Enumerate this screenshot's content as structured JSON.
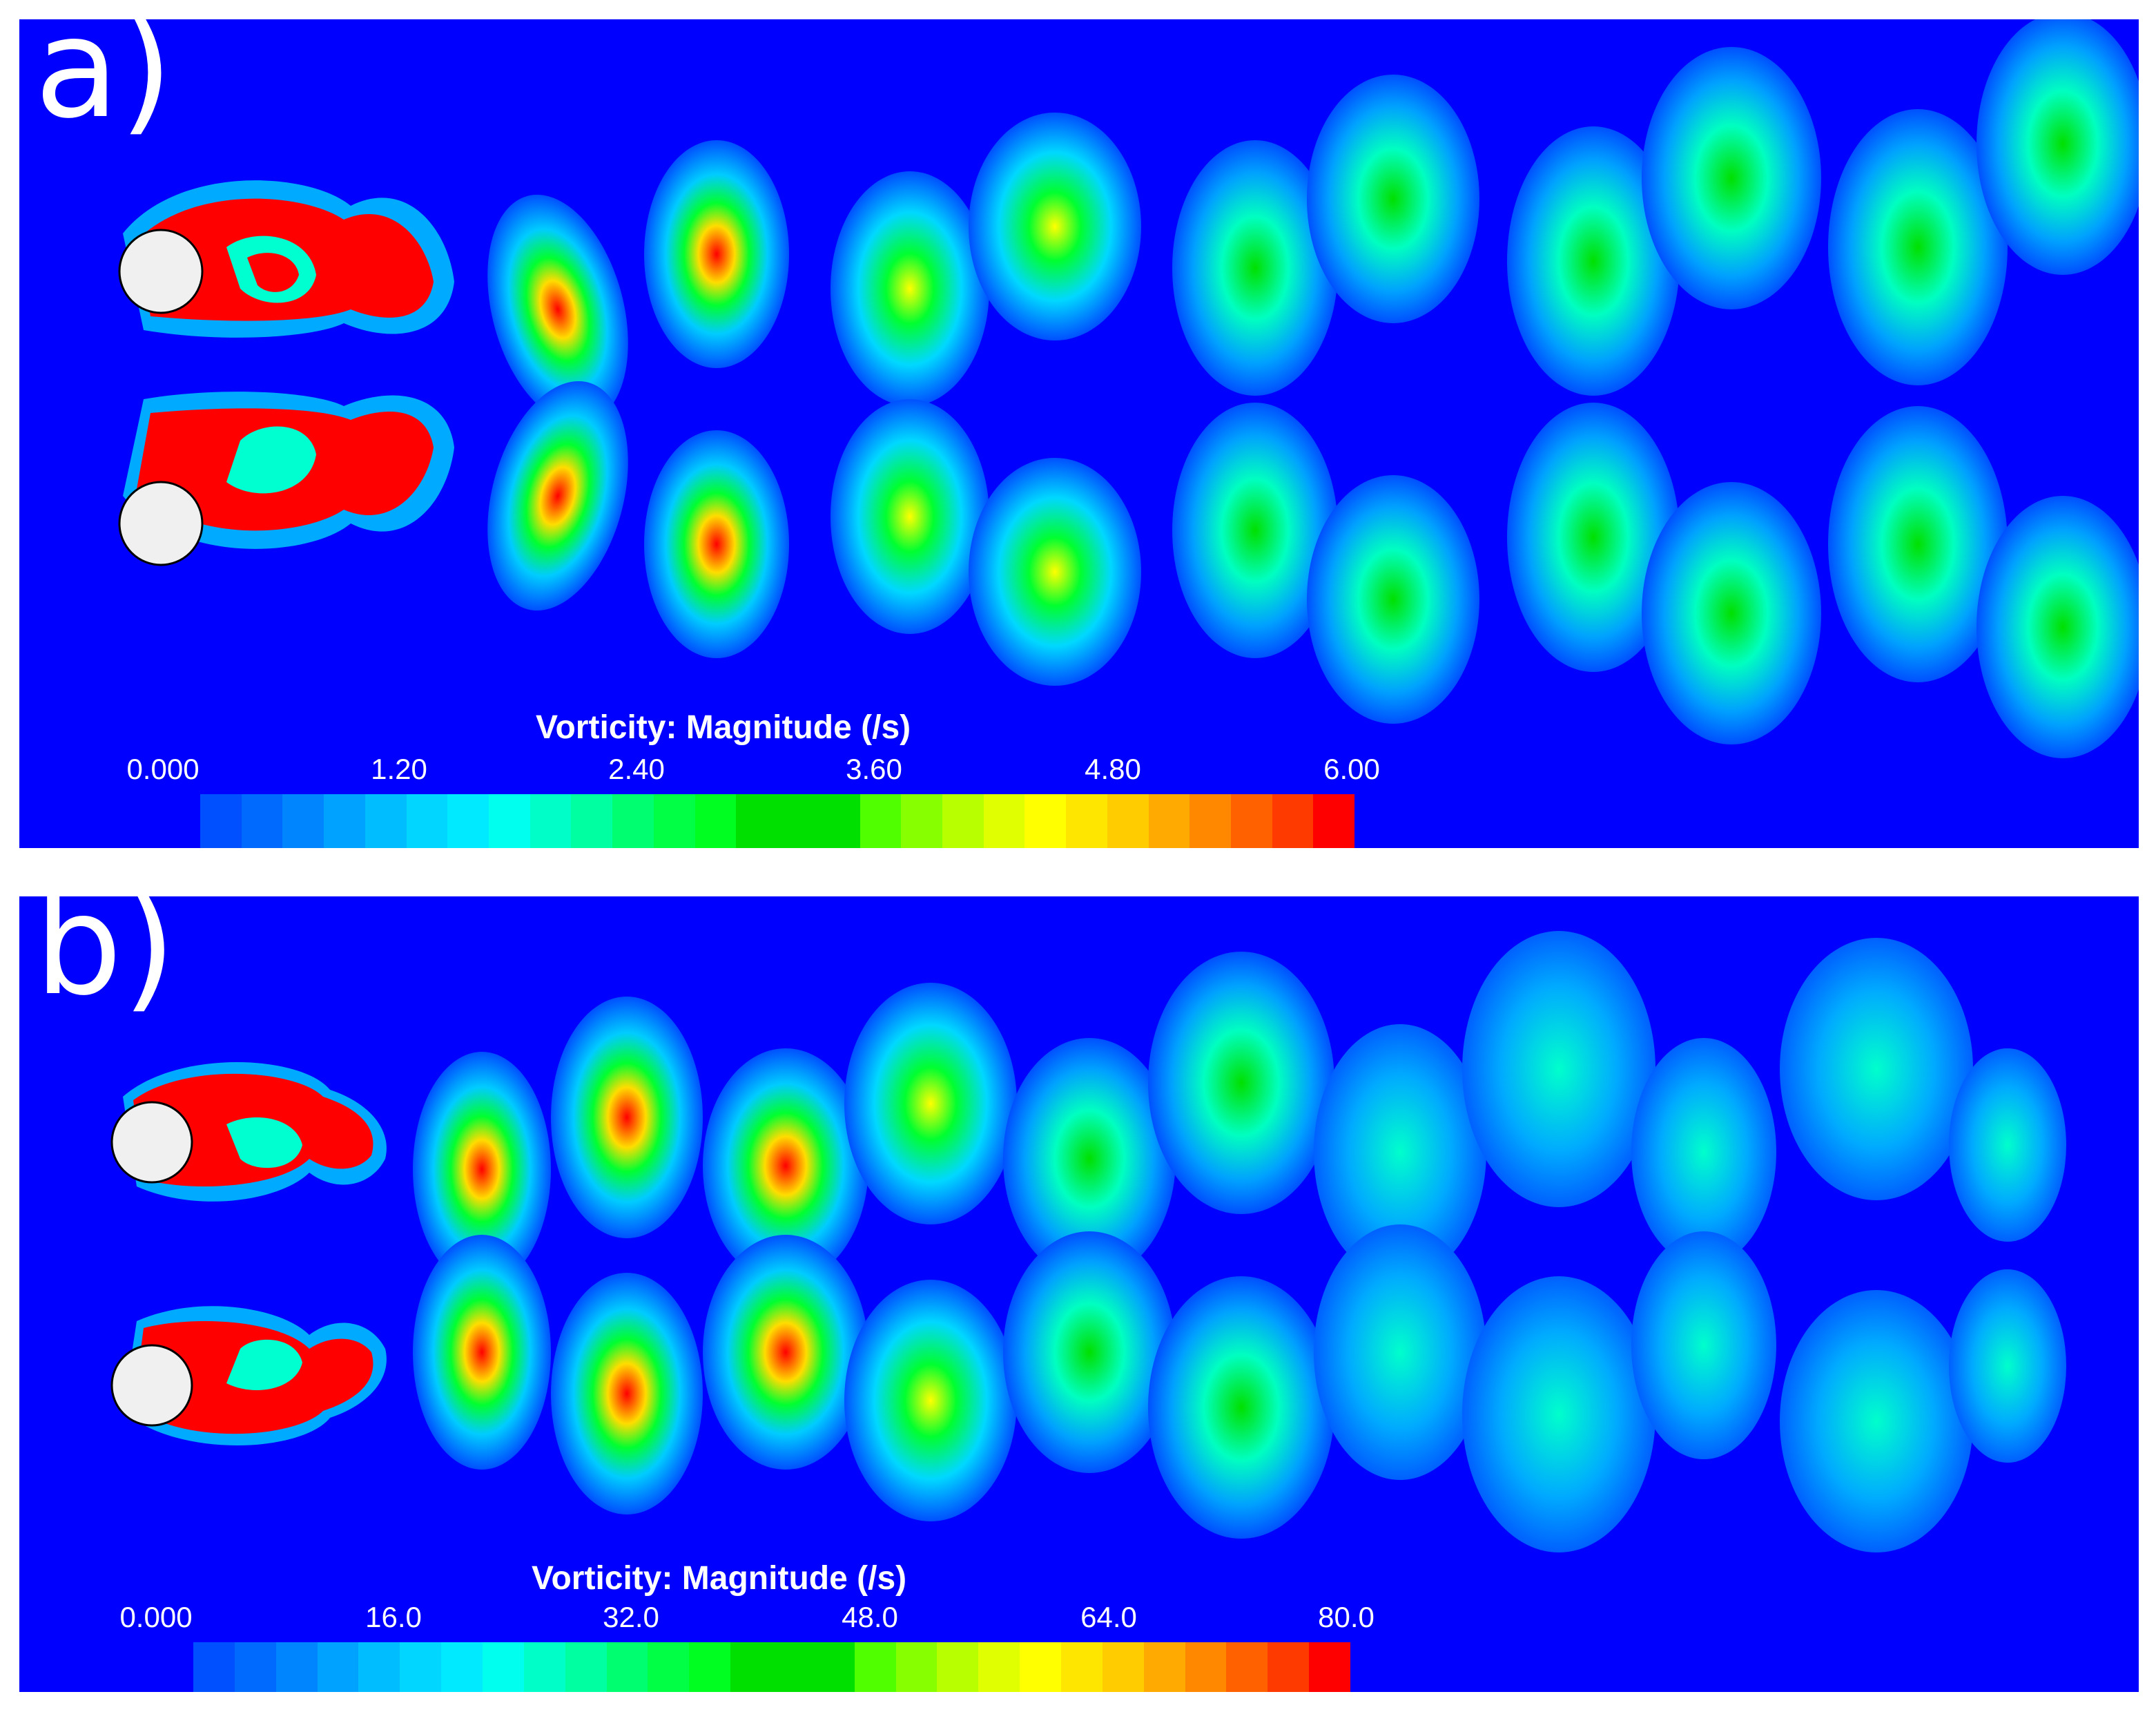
{
  "palette": [
    "#0050ff",
    "#006aff",
    "#0085ff",
    "#00a2ff",
    "#00bdff",
    "#00d6ff",
    "#00eaff",
    "#00ffee",
    "#00ffc8",
    "#00ffa0",
    "#00ff70",
    "#00ff45",
    "#00ff20",
    "#00e000",
    "#00e000",
    "#00e000",
    "#50ff00",
    "#88ff00",
    "#b8ff00",
    "#e0ff00",
    "#ffff00",
    "#ffe600",
    "#ffcc00",
    "#ffaa00",
    "#ff8800",
    "#ff6000",
    "#ff3a00",
    "#ff0000"
  ],
  "panels": [
    {
      "label": "a)",
      "legend": {
        "title": "Vorticity: Magnitude (/s)",
        "ticks": [
          "0.000",
          "1.20",
          "2.40",
          "3.60",
          "4.80",
          "6.00"
        ]
      }
    },
    {
      "label": "b)",
      "legend": {
        "title": "Vorticity: Magnitude (/s)",
        "ticks": [
          "0.000",
          "16.0",
          "32.0",
          "48.0",
          "64.0",
          "80.0"
        ]
      }
    }
  ]
}
